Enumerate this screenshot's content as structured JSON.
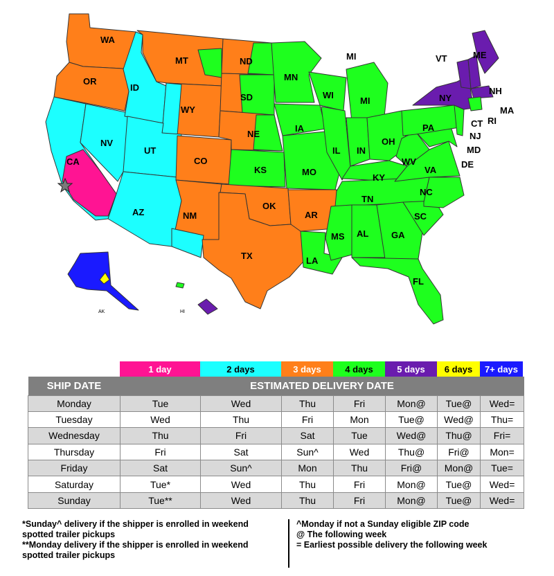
{
  "colors": {
    "day1": "#ff1493",
    "day2": "#1cffff",
    "day3": "#ff7f1a",
    "day4": "#1eff1e",
    "day5": "#6a1cae",
    "day6": "#ffff00",
    "day7": "#1a1aff",
    "header_gray": "#7f7f7f",
    "row_shade": "#d9d9d9"
  },
  "map": {
    "states": [
      "WA",
      "OR",
      "CA",
      "NV",
      "ID",
      "MT",
      "WY",
      "UT",
      "AZ",
      "CO",
      "NM",
      "ND",
      "SD",
      "NE",
      "KS",
      "OK",
      "TX",
      "MN",
      "IA",
      "MO",
      "AR",
      "LA",
      "WI",
      "IL",
      "MI",
      "IN",
      "OH",
      "KY",
      "TN",
      "MS",
      "AL",
      "GA",
      "FL",
      "SC",
      "NC",
      "VA",
      "WV",
      "PA",
      "NY",
      "VT",
      "ME",
      "NH",
      "MA",
      "RI",
      "CT",
      "NJ",
      "MD",
      "DE"
    ],
    "alaska_label": "AK",
    "hawaii_label": "HI",
    "origin_marker_icon": "star-icon"
  },
  "legend": [
    {
      "label": "1 day",
      "color": "#ff1493",
      "text_color": "#ffffff"
    },
    {
      "label": "2 days",
      "color": "#1cffff",
      "text_color": "#000000"
    },
    {
      "label": "3 days",
      "color": "#ff7f1a",
      "text_color": "#ffffff"
    },
    {
      "label": "4 days",
      "color": "#1eff1e",
      "text_color": "#000000"
    },
    {
      "label": "5 days",
      "color": "#6a1cae",
      "text_color": "#ffffff"
    },
    {
      "label": "6 days",
      "color": "#ffff00",
      "text_color": "#000000"
    },
    {
      "label": "7+ days",
      "color": "#1a1aff",
      "text_color": "#ffffff"
    }
  ],
  "table": {
    "header_ship": "SHIP DATE",
    "header_delivery": "ESTIMATED DELIVERY DATE",
    "rows": [
      [
        "Monday",
        "Tue",
        "Wed",
        "Thu",
        "Fri",
        "Mon@",
        "Tue@",
        "Wed="
      ],
      [
        "Tuesday",
        "Wed",
        "Thu",
        "Fri",
        "Mon",
        "Tue@",
        "Wed@",
        "Thu="
      ],
      [
        "Wednesday",
        "Thu",
        "Fri",
        "Sat",
        "Tue",
        "Wed@",
        "Thu@",
        "Fri="
      ],
      [
        "Thursday",
        "Fri",
        "Sat",
        "Sun^",
        "Wed",
        "Thu@",
        "Fri@",
        "Mon="
      ],
      [
        "Friday",
        "Sat",
        "Sun^",
        "Mon",
        "Thu",
        "Fri@",
        "Mon@",
        "Tue="
      ],
      [
        "Saturday",
        "Tue*",
        "Wed",
        "Thu",
        "Fri",
        "Mon@",
        "Tue@",
        "Wed="
      ],
      [
        "Sunday",
        "Tue**",
        "Wed",
        "Thu",
        "Fri",
        "Mon@",
        "Tue@",
        "Wed="
      ]
    ]
  },
  "notes": {
    "left_1a": "*Sunday^ delivery if the shipper is enrolled in weekend",
    "left_1b": "spotted trailer pickups",
    "left_2a": "**Monday delivery if the shipper is enrolled in weekend",
    "left_2b": "spotted trailer pickups",
    "right_1": "^Monday if not a Sunday eligible ZIP code",
    "right_2": "@ The following week",
    "right_3": "= Earliest possible delivery the following week"
  }
}
